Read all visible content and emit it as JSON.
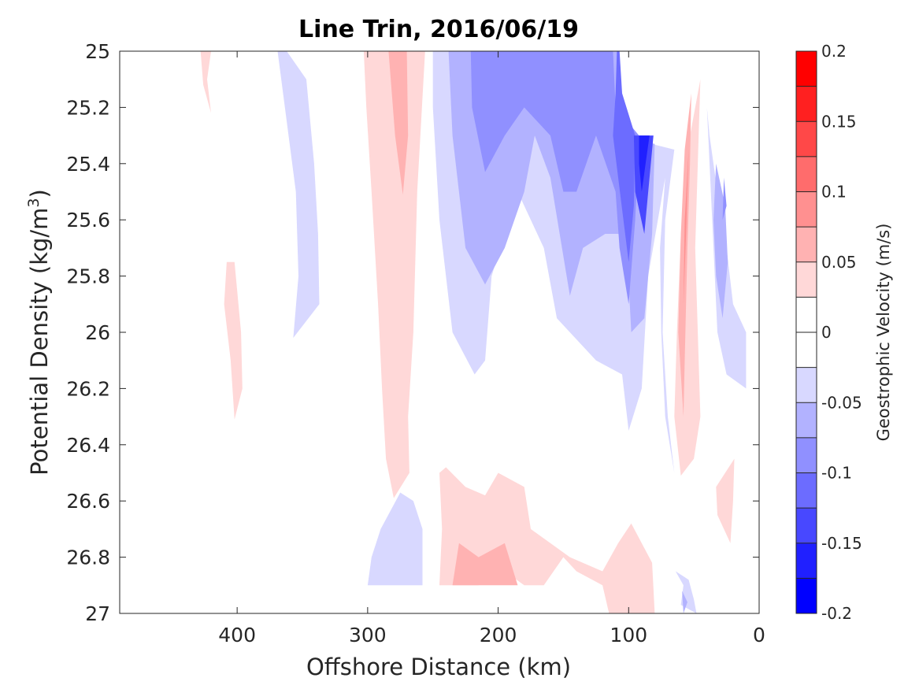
{
  "chart_data": {
    "type": "contour",
    "title": "Line Trin, 2016/06/19",
    "xlabel": "Offshore Distance (km)",
    "ylabel_main": "Potential Density (kg/m",
    "ylabel_sup": "3",
    "ylabel_close": ")",
    "colorbar_label": "Geostrophic Velocity (m/s)",
    "xlim": [
      490,
      0
    ],
    "ylim": [
      25,
      27
    ],
    "x_reversed": true,
    "y_reversed": true,
    "x_ticks": [
      400,
      300,
      200,
      100,
      0
    ],
    "x_tick_labels": [
      "400",
      "300",
      "200",
      "100",
      "0"
    ],
    "y_ticks": [
      25,
      25.2,
      25.4,
      25.6,
      25.8,
      26,
      26.2,
      26.4,
      26.6,
      26.8,
      27
    ],
    "y_tick_labels": [
      "25",
      "25.2",
      "25.4",
      "25.6",
      "25.8",
      "26",
      "26.2",
      "26.4",
      "26.6",
      "26.8",
      "27"
    ],
    "color_levels": [
      -0.2,
      -0.175,
      -0.15,
      -0.125,
      -0.1,
      -0.075,
      -0.05,
      -0.025,
      0,
      0.025,
      0.05,
      0.075,
      0.1,
      0.125,
      0.15,
      0.175,
      0.2
    ],
    "colorbar_colors": [
      "#0000ff",
      "#2020ff",
      "#4848ff",
      "#6c6cff",
      "#9090ff",
      "#b2b2ff",
      "#d8d8ff",
      "#ffffff",
      "#ffffff",
      "#ffd8d8",
      "#ffb2b2",
      "#ff9090",
      "#ff6c6c",
      "#ff4848",
      "#ff2020",
      "#ff0000"
    ],
    "colorbar_ticks": [
      0.2,
      0.15,
      0.1,
      0.05,
      0,
      -0.05,
      -0.1,
      -0.15,
      -0.2
    ],
    "colorbar_tick_labels": [
      "0.2",
      "0.15",
      "0.1",
      "0.05",
      "0",
      "-0.05",
      "-0.1",
      "-0.15",
      "-0.2"
    ],
    "regions": [
      {
        "level": -0.025,
        "color": "#d8d8ff",
        "points": [
          [
            369,
            25
          ],
          [
            362,
            25
          ],
          [
            347,
            25.1
          ],
          [
            341,
            25.4
          ],
          [
            338,
            25.65
          ],
          [
            337,
            25.9
          ],
          [
            357,
            26.02
          ],
          [
            353,
            25.8
          ],
          [
            355,
            25.5
          ],
          [
            362,
            25.25
          ]
        ]
      },
      {
        "level": 0.025,
        "color": "#ffd8d8",
        "points": [
          [
            428,
            25
          ],
          [
            420,
            25
          ],
          [
            423,
            25.1
          ],
          [
            420,
            25.22
          ],
          [
            426,
            25.12
          ]
        ]
      },
      {
        "level": 0.025,
        "color": "#ffd8d8",
        "points": [
          [
            408,
            25.75
          ],
          [
            402,
            25.75
          ],
          [
            397,
            26.0
          ],
          [
            396,
            26.2
          ],
          [
            402,
            26.31
          ],
          [
            405,
            26.1
          ],
          [
            410,
            25.9
          ]
        ]
      },
      {
        "level": 0.025,
        "color": "#ffd8d8",
        "points": [
          [
            303,
            25
          ],
          [
            256,
            25
          ],
          [
            262,
            25.5
          ],
          [
            265,
            26.0
          ],
          [
            269,
            26.3
          ],
          [
            268,
            26.5
          ],
          [
            280,
            26.59
          ],
          [
            286,
            26.45
          ],
          [
            289,
            26.2
          ],
          [
            292,
            25.9
          ],
          [
            297,
            25.5
          ],
          [
            301,
            25.2
          ]
        ]
      },
      {
        "level": 0.05,
        "color": "#ffb2b2",
        "points": [
          [
            284,
            25
          ],
          [
            270,
            25
          ],
          [
            269,
            25.3
          ],
          [
            273,
            25.51
          ],
          [
            279,
            25.3
          ]
        ]
      },
      {
        "level": -0.025,
        "color": "#d8d8ff",
        "points": [
          [
            250,
            25
          ],
          [
            108,
            25
          ],
          [
            108,
            25.3
          ],
          [
            65,
            25.35
          ],
          [
            72,
            25.6
          ],
          [
            74,
            26.0
          ],
          [
            70,
            26.3
          ],
          [
            65,
            26.5
          ],
          [
            72,
            26.3
          ],
          [
            75,
            26.0
          ],
          [
            76,
            25.7
          ],
          [
            72,
            25.45
          ],
          [
            85,
            25.8
          ],
          [
            90,
            26.2
          ],
          [
            100,
            26.35
          ],
          [
            105,
            26.15
          ],
          [
            125,
            26.1
          ],
          [
            135,
            26.05
          ],
          [
            155,
            25.95
          ],
          [
            165,
            25.7
          ],
          [
            185,
            25.5
          ],
          [
            205,
            25.8
          ],
          [
            210,
            26.1
          ],
          [
            218,
            26.15
          ],
          [
            235,
            26.0
          ],
          [
            245,
            25.6
          ],
          [
            250,
            25.2
          ]
        ]
      },
      {
        "level": -0.05,
        "color": "#b2b2ff",
        "points": [
          [
            238,
            25
          ],
          [
            108,
            25
          ],
          [
            108,
            25.3
          ],
          [
            80,
            25.33
          ],
          [
            82,
            25.65
          ],
          [
            88,
            25.95
          ],
          [
            98,
            26.0
          ],
          [
            102,
            25.65
          ],
          [
            118,
            25.65
          ],
          [
            135,
            25.7
          ],
          [
            145,
            25.87
          ],
          [
            160,
            25.45
          ],
          [
            172,
            25.3
          ],
          [
            180,
            25.5
          ],
          [
            195,
            25.7
          ],
          [
            210,
            25.83
          ],
          [
            225,
            25.7
          ],
          [
            235,
            25.3
          ]
        ]
      },
      {
        "level": -0.075,
        "color": "#9090ff",
        "points": [
          [
            221,
            25
          ],
          [
            112,
            25
          ],
          [
            110,
            25.2
          ],
          [
            92,
            25.3
          ],
          [
            95,
            25.6
          ],
          [
            100,
            25.9
          ],
          [
            107,
            25.7
          ],
          [
            110,
            25.5
          ],
          [
            125,
            25.3
          ],
          [
            140,
            25.5
          ],
          [
            150,
            25.5
          ],
          [
            160,
            25.3
          ],
          [
            180,
            25.2
          ],
          [
            195,
            25.3
          ],
          [
            210,
            25.43
          ],
          [
            220,
            25.2
          ]
        ]
      },
      {
        "level": -0.1,
        "color": "#6c6cff",
        "points": [
          [
            109,
            25
          ],
          [
            107,
            25
          ],
          [
            105,
            25.15
          ],
          [
            95,
            25.3
          ],
          [
            96,
            25.55
          ],
          [
            100,
            25.75
          ],
          [
            108,
            25.45
          ],
          [
            112,
            25.3
          ],
          [
            110,
            25.15
          ]
        ]
      },
      {
        "level": -0.125,
        "color": "#4848ff",
        "points": [
          [
            96,
            25.3
          ],
          [
            81,
            25.3
          ],
          [
            84,
            25.45
          ],
          [
            88,
            25.65
          ],
          [
            95,
            25.5
          ]
        ]
      },
      {
        "level": -0.15,
        "color": "#2020ff",
        "points": [
          [
            92,
            25.3
          ],
          [
            84,
            25.3
          ],
          [
            87,
            25.4
          ],
          [
            90,
            25.5
          ],
          [
            92,
            25.4
          ]
        ]
      },
      {
        "level": 0.025,
        "color": "#ffd8d8",
        "points": [
          [
            45,
            25.1
          ],
          [
            55,
            25.35
          ],
          [
            60,
            25.65
          ],
          [
            63,
            26.0
          ],
          [
            65,
            26.3
          ],
          [
            60,
            26.51
          ],
          [
            50,
            26.45
          ],
          [
            45,
            26.3
          ],
          [
            47,
            26.0
          ],
          [
            49,
            25.7
          ],
          [
            47,
            25.4
          ]
        ]
      },
      {
        "level": 0.05,
        "color": "#ffb2b2",
        "points": [
          [
            52,
            25.15
          ],
          [
            57,
            25.35
          ],
          [
            60,
            25.65
          ],
          [
            62,
            26.0
          ],
          [
            58,
            26.3
          ],
          [
            57,
            26.1
          ],
          [
            55,
            25.7
          ],
          [
            53,
            25.4
          ]
        ]
      },
      {
        "level": 0.075,
        "color": "#ff9090",
        "points": [
          [
            54,
            25.35
          ],
          [
            57,
            25.6
          ],
          [
            58,
            25.9
          ],
          [
            56,
            25.65
          ]
        ]
      },
      {
        "level": -0.025,
        "color": "#d8d8ff",
        "points": [
          [
            40,
            25.2
          ],
          [
            37,
            25.5
          ],
          [
            34,
            25.8
          ],
          [
            32,
            26.0
          ],
          [
            25,
            26.15
          ],
          [
            10,
            26.2
          ],
          [
            10,
            26.0
          ],
          [
            20,
            25.9
          ],
          [
            25,
            25.7
          ],
          [
            32,
            25.5
          ],
          [
            38,
            25.3
          ]
        ]
      },
      {
        "level": -0.05,
        "color": "#b2b2ff",
        "points": [
          [
            33,
            25.4
          ],
          [
            26,
            25.55
          ],
          [
            24,
            25.75
          ],
          [
            28,
            25.95
          ],
          [
            33,
            25.8
          ],
          [
            35,
            25.6
          ]
        ]
      },
      {
        "level": -0.075,
        "color": "#9090ff",
        "points": [
          [
            27,
            25.45
          ],
          [
            25,
            25.55
          ],
          [
            28,
            25.6
          ]
        ]
      },
      {
        "level": -0.025,
        "color": "#d8d8ff",
        "points": [
          [
            300,
            26.9
          ],
          [
            258,
            26.9
          ],
          [
            258,
            26.7
          ],
          [
            265,
            26.6
          ],
          [
            275,
            26.57
          ],
          [
            290,
            26.7
          ],
          [
            297,
            26.8
          ]
        ]
      },
      {
        "level": 0.025,
        "color": "#ffd8d8",
        "points": [
          [
            245,
            26.9
          ],
          [
            243,
            26.7
          ],
          [
            245,
            26.5
          ],
          [
            240,
            26.48
          ],
          [
            225,
            26.55
          ],
          [
            210,
            26.58
          ],
          [
            200,
            26.5
          ],
          [
            180,
            26.55
          ],
          [
            175,
            26.7
          ],
          [
            160,
            26.75
          ],
          [
            145,
            26.8
          ],
          [
            120,
            26.85
          ],
          [
            108,
            26.75
          ],
          [
            98,
            26.68
          ],
          [
            82,
            26.82
          ],
          [
            80,
            27.0
          ],
          [
            115,
            27.0
          ],
          [
            120,
            26.9
          ],
          [
            140,
            26.85
          ],
          [
            150,
            26.8
          ],
          [
            165,
            26.9
          ],
          [
            180,
            26.9
          ],
          [
            195,
            26.85
          ],
          [
            215,
            26.9
          ],
          [
            235,
            26.9
          ]
        ]
      },
      {
        "level": 0.05,
        "color": "#ffb2b2",
        "points": [
          [
            235,
            26.9
          ],
          [
            230,
            26.75
          ],
          [
            215,
            26.8
          ],
          [
            195,
            26.75
          ],
          [
            185,
            26.9
          ],
          [
            205,
            26.9
          ]
        ]
      },
      {
        "level": 0.025,
        "color": "#ffd8d8",
        "points": [
          [
            33,
            26.55
          ],
          [
            19,
            26.45
          ],
          [
            20,
            26.6
          ],
          [
            22,
            26.75
          ],
          [
            32,
            26.65
          ]
        ]
      },
      {
        "level": -0.025,
        "color": "#d8d8ff",
        "points": [
          [
            64,
            26.85
          ],
          [
            54,
            26.88
          ],
          [
            50,
            26.95
          ],
          [
            48,
            27.0
          ],
          [
            60,
            26.97
          ],
          [
            58,
            26.9
          ]
        ]
      },
      {
        "level": -0.05,
        "color": "#b2b2ff",
        "points": [
          [
            59,
            26.92
          ],
          [
            55,
            26.96
          ],
          [
            58,
            27.0
          ]
        ]
      }
    ]
  }
}
